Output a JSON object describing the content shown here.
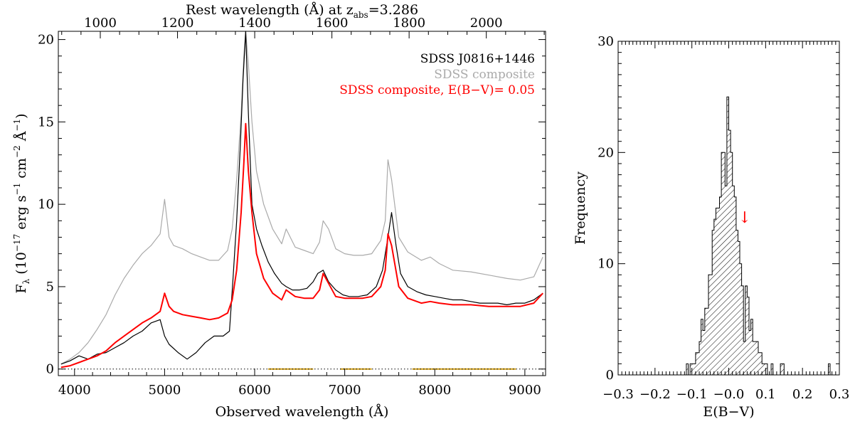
{
  "chart_data": [
    {
      "type": "line",
      "top_axis": {
        "label": "Rest wavelength (Å) at z",
        "label_sub": "abs",
        "label_tail": "=3.286",
        "z": 3.286,
        "ticks": [
          1000,
          1200,
          1400,
          1600,
          1800,
          2000
        ],
        "tick_labels": [
          "1000",
          "1200",
          "1400",
          "1600",
          "1800",
          "2000"
        ]
      },
      "xlabel": "Observed wavelength (Å)",
      "ylabel": {
        "main": "F",
        "sub": "λ",
        "rest": " (10",
        "exp1": "−17",
        "mid": " erg s",
        "exp2": "−1",
        "mid2": " cm",
        "exp3": "−2",
        "mid3": " Å",
        "exp4": "−1",
        "end": ")"
      },
      "xlim": [
        3820,
        9230
      ],
      "ylim": [
        -0.4,
        20.5
      ],
      "xticks": [
        4000,
        5000,
        6000,
        7000,
        8000,
        9000
      ],
      "xtick_labels": [
        "4000",
        "5000",
        "6000",
        "7000",
        "8000",
        "9000"
      ],
      "yticks": [
        0,
        5,
        10,
        15,
        20
      ],
      "ytick_labels": [
        "0",
        "5",
        "10",
        "15",
        "20"
      ],
      "legend_position": "top-right",
      "series": [
        {
          "name": "SDSS J0816+1446",
          "color": "#000000",
          "x": [
            3850,
            3950,
            4050,
            4150,
            4250,
            4350,
            4450,
            4550,
            4650,
            4750,
            4850,
            4950,
            5000,
            5050,
            5150,
            5250,
            5350,
            5450,
            5550,
            5650,
            5720,
            5760,
            5800,
            5840,
            5870,
            5900,
            5930,
            5970,
            6020,
            6080,
            6150,
            6220,
            6300,
            6350,
            6420,
            6500,
            6580,
            6650,
            6700,
            6760,
            6820,
            6900,
            6980,
            7050,
            7150,
            7250,
            7350,
            7420,
            7480,
            7520,
            7570,
            7620,
            7700,
            7800,
            7900,
            8000,
            8100,
            8200,
            8300,
            8400,
            8500,
            8600,
            8700,
            8800,
            8900,
            9000,
            9100,
            9200
          ],
          "y": [
            0.3,
            0.5,
            0.8,
            0.6,
            0.9,
            1.0,
            1.3,
            1.6,
            2.0,
            2.3,
            2.8,
            3.0,
            2.0,
            1.5,
            1.0,
            0.6,
            1.0,
            1.6,
            2.0,
            2.0,
            2.3,
            5.5,
            9.0,
            13.5,
            17.5,
            20.6,
            15.5,
            10.0,
            8.5,
            7.5,
            6.5,
            5.8,
            5.2,
            5.0,
            4.8,
            4.8,
            4.9,
            5.3,
            5.8,
            6.0,
            5.3,
            4.8,
            4.5,
            4.4,
            4.4,
            4.5,
            5.0,
            6.0,
            8.0,
            9.5,
            7.5,
            5.8,
            5.0,
            4.7,
            4.5,
            4.4,
            4.3,
            4.2,
            4.2,
            4.1,
            4.0,
            4.0,
            4.0,
            3.9,
            4.0,
            4.0,
            4.2,
            4.6
          ]
        },
        {
          "name": "SDSS composite",
          "color": "#aaaaaa",
          "x": [
            3850,
            3950,
            4050,
            4150,
            4250,
            4350,
            4450,
            4550,
            4650,
            4750,
            4850,
            4950,
            5000,
            5050,
            5100,
            5200,
            5300,
            5400,
            5500,
            5600,
            5700,
            5750,
            5800,
            5850,
            5880,
            5900,
            5930,
            5970,
            6020,
            6100,
            6200,
            6300,
            6350,
            6450,
            6550,
            6650,
            6720,
            6760,
            6820,
            6900,
            7000,
            7100,
            7200,
            7300,
            7400,
            7450,
            7480,
            7520,
            7600,
            7700,
            7850,
            7950,
            8050,
            8200,
            8400,
            8600,
            8800,
            8950,
            9100,
            9200
          ],
          "y": [
            0.3,
            0.6,
            1.0,
            1.6,
            2.4,
            3.3,
            4.5,
            5.5,
            6.3,
            7.0,
            7.5,
            8.2,
            10.3,
            8.0,
            7.5,
            7.3,
            7.0,
            6.8,
            6.6,
            6.6,
            7.2,
            8.5,
            11.5,
            15.5,
            19.0,
            20.6,
            18.5,
            15.0,
            12.0,
            10.0,
            8.5,
            7.6,
            8.5,
            7.4,
            7.2,
            7.0,
            7.7,
            9.0,
            8.5,
            7.3,
            7.0,
            6.9,
            6.9,
            7.0,
            7.8,
            9.0,
            12.7,
            11.5,
            8.0,
            7.1,
            6.6,
            6.8,
            6.4,
            6.0,
            5.9,
            5.7,
            5.5,
            5.4,
            5.6,
            6.8
          ]
        },
        {
          "name": "SDSS composite, E(B−V)= 0.05",
          "color": "#ff0000",
          "x": [
            3850,
            3950,
            4050,
            4150,
            4250,
            4350,
            4450,
            4550,
            4650,
            4750,
            4850,
            4950,
            5000,
            5050,
            5100,
            5200,
            5300,
            5400,
            5500,
            5600,
            5700,
            5750,
            5800,
            5850,
            5880,
            5900,
            5930,
            5970,
            6020,
            6100,
            6200,
            6300,
            6350,
            6450,
            6550,
            6650,
            6720,
            6760,
            6820,
            6900,
            7000,
            7100,
            7200,
            7300,
            7400,
            7450,
            7480,
            7520,
            7600,
            7700,
            7850,
            7950,
            8050,
            8200,
            8400,
            8600,
            8800,
            8950,
            9100,
            9200
          ],
          "y": [
            0.1,
            0.2,
            0.4,
            0.6,
            0.8,
            1.1,
            1.6,
            2.0,
            2.4,
            2.8,
            3.1,
            3.5,
            4.6,
            3.8,
            3.5,
            3.3,
            3.2,
            3.1,
            3.0,
            3.1,
            3.4,
            4.2,
            6.0,
            9.5,
            12.5,
            14.9,
            12.0,
            9.5,
            7.0,
            5.5,
            4.6,
            4.2,
            4.8,
            4.4,
            4.3,
            4.3,
            4.8,
            5.8,
            5.2,
            4.4,
            4.3,
            4.3,
            4.3,
            4.4,
            5.0,
            6.0,
            8.2,
            7.5,
            5.0,
            4.3,
            4.0,
            4.1,
            4.0,
            3.9,
            3.9,
            3.8,
            3.8,
            3.8,
            4.0,
            4.6
          ]
        }
      ],
      "zero_line": 0,
      "fit_regions": [
        [
          6150,
          6650
        ],
        [
          6950,
          7300
        ],
        [
          7750,
          8900
        ]
      ],
      "fit_region_color": "#d4a017"
    },
    {
      "type": "bar",
      "subtype": "histogram",
      "xlabel": "E(B−V)",
      "ylabel": "Frequency",
      "xlim": [
        -0.3,
        0.3
      ],
      "ylim": [
        0,
        30
      ],
      "xticks": [
        -0.3,
        -0.2,
        -0.1,
        0.0,
        0.1,
        0.2,
        0.3
      ],
      "xtick_labels": [
        "−0.3",
        "−0.2",
        "−0.1",
        "−0.0",
        "0.1",
        "0.2",
        "0.3"
      ],
      "yticks": [
        0,
        10,
        20,
        30
      ],
      "ytick_labels": [
        "0",
        "10",
        "20",
        "30"
      ],
      "bin_width": 0.005,
      "bin_start": -0.12,
      "counts": [
        0,
        1,
        0,
        1,
        1,
        1,
        2,
        2,
        3,
        5,
        4,
        6,
        6,
        9,
        9,
        13,
        14,
        15,
        15,
        16,
        20,
        20,
        17,
        25,
        22,
        20,
        17,
        16,
        13,
        12,
        10,
        8,
        3,
        8,
        7,
        4,
        5,
        3,
        3,
        3,
        2,
        2,
        1,
        1,
        1,
        0,
        0,
        1,
        0,
        0,
        0,
        0,
        1,
        1,
        0,
        0,
        0,
        0,
        0,
        0,
        0,
        0,
        0,
        0,
        0,
        0,
        0,
        0,
        0,
        0,
        0,
        0,
        0,
        0,
        0,
        0,
        0,
        0,
        1,
        0
      ],
      "marker": {
        "x": 0.043,
        "symbol": "↓",
        "color": "#ff0000"
      }
    }
  ]
}
